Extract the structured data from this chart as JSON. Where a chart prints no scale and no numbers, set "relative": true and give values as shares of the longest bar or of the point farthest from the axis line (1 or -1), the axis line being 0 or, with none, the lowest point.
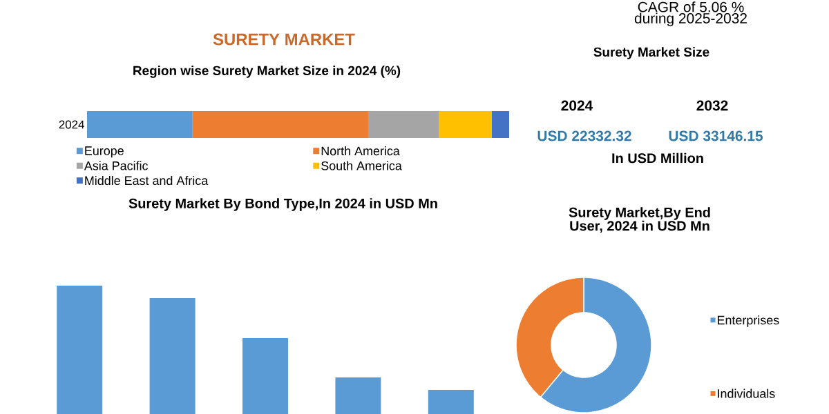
{
  "chart_data": [
    {
      "type": "bar",
      "orientation": "horizontal",
      "stacked": true,
      "relative": true,
      "title": "SURETY MARKET",
      "subtitle": "Region wise Surety Market Size in 2024 (%)",
      "categories": [
        "2024"
      ],
      "legend": "bottom",
      "series": [
        {
          "name": "Europe",
          "color": "#5b9bd5",
          "values": [
            0.25
          ]
        },
        {
          "name": "North America",
          "color": "#ed7d31",
          "values": [
            0.416
          ]
        },
        {
          "name": "Asia Pacific",
          "color": "#a5a5a5",
          "values": [
            0.167
          ]
        },
        {
          "name": "South America",
          "color": "#ffc000",
          "values": [
            0.126
          ]
        },
        {
          "name": "Middle East and Africa",
          "color": "#4472c4",
          "values": [
            0.041
          ]
        }
      ]
    },
    {
      "type": "other",
      "title": "Surety Market Size",
      "annotations": [
        "CAGR of 5.06 % during 2025-2032",
        "2024",
        "2032",
        "USD 22332.32",
        "USD 33146.15",
        "In USD Million"
      ]
    },
    {
      "type": "bar",
      "relative": true,
      "title": "Surety Market By Bond Type,In 2024 in USD Mn",
      "categories": [
        null,
        null,
        null,
        null,
        null
      ],
      "values": [
        1,
        0.903,
        0.591,
        0.285,
        0.188
      ],
      "color": "#5b9bd5"
    },
    {
      "type": "donut",
      "title": "Surety Market,By End User, 2024 in USD Mn",
      "categories": [
        "Enterprises",
        "Individuals"
      ],
      "values": [
        61,
        39
      ],
      "colors": [
        "#5b9bd5",
        "#ed7d31"
      ],
      "legend": "right"
    }
  ]
}
